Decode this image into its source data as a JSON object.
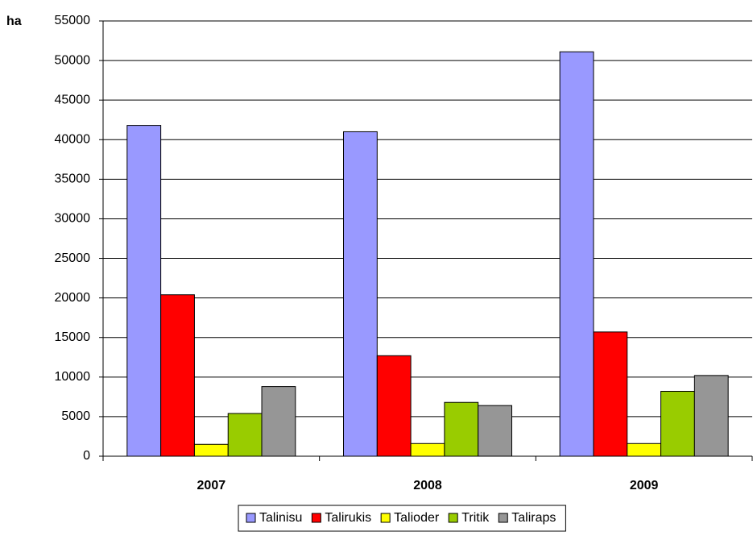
{
  "chart_data": {
    "type": "bar",
    "y_label": "ha",
    "categories": [
      "2007",
      "2008",
      "2009"
    ],
    "series": [
      {
        "name": "Talinisu",
        "color": "#9999ff",
        "values": [
          41800,
          41000,
          51100
        ]
      },
      {
        "name": "Talirukis",
        "color": "#ff0000",
        "values": [
          20400,
          12700,
          15700
        ]
      },
      {
        "name": "Talioder",
        "color": "#ffff00",
        "values": [
          1500,
          1600,
          1600
        ]
      },
      {
        "name": "Tritik",
        "color": "#99cc00",
        "values": [
          5400,
          6800,
          8200
        ]
      },
      {
        "name": "Taliraps",
        "color": "#969696",
        "values": [
          8800,
          6400,
          10200
        ]
      }
    ],
    "ylim": [
      0,
      55000
    ],
    "yticks": [
      0,
      5000,
      10000,
      15000,
      20000,
      25000,
      30000,
      35000,
      40000,
      45000,
      50000,
      55000
    ],
    "grid": true,
    "legend": "bottom"
  }
}
